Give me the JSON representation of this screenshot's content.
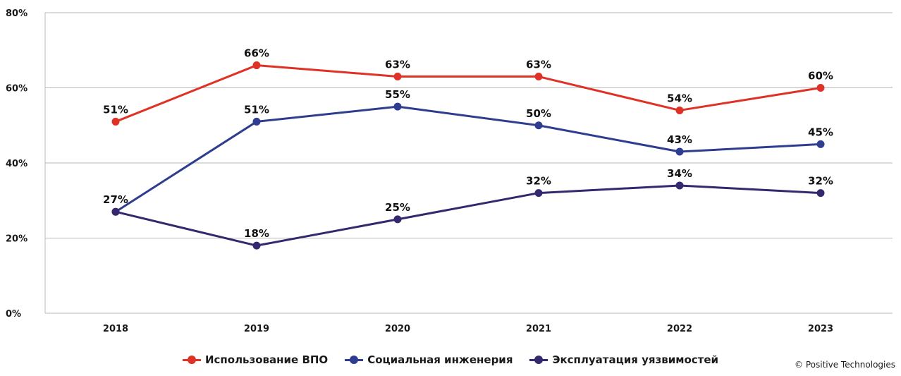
{
  "chart_data": {
    "type": "line",
    "categories": [
      "2018",
      "2019",
      "2020",
      "2021",
      "2022",
      "2023"
    ],
    "ylim": [
      0,
      80
    ],
    "yticks": [
      0,
      20,
      40,
      60,
      80
    ],
    "ytick_labels": [
      "0%",
      "20%",
      "40%",
      "60%",
      "80%"
    ],
    "value_suffix": "%",
    "grid": "horizontal",
    "legend_position": "bottom",
    "series": [
      {
        "name": "Использование ВПО",
        "color": "#e03127",
        "values": [
          51,
          66,
          63,
          63,
          54,
          60
        ],
        "label_offsets": [
          -1,
          -1,
          -1,
          -1,
          -1,
          -1
        ]
      },
      {
        "name": "Социальная инженерия",
        "color": "#2e3d8f",
        "values": [
          27,
          51,
          55,
          50,
          43,
          45
        ],
        "label_offsets": [
          0,
          -1,
          -1,
          -1,
          -1,
          -1
        ]
      },
      {
        "name": "Эксплуатация уязвимостей",
        "color": "#35286e",
        "values": [
          27,
          18,
          25,
          32,
          34,
          32
        ],
        "label_offsets": [
          -1,
          -1,
          -1,
          -1,
          -1,
          -1
        ]
      }
    ]
  },
  "legend": {
    "items": [
      {
        "label": "Использование ВПО",
        "color": "#e03127"
      },
      {
        "label": "Социальная инженерия",
        "color": "#2e3d8f"
      },
      {
        "label": "Эксплуатация уязвимостей",
        "color": "#35286e"
      }
    ]
  },
  "copyright": "© Positive Technologies"
}
